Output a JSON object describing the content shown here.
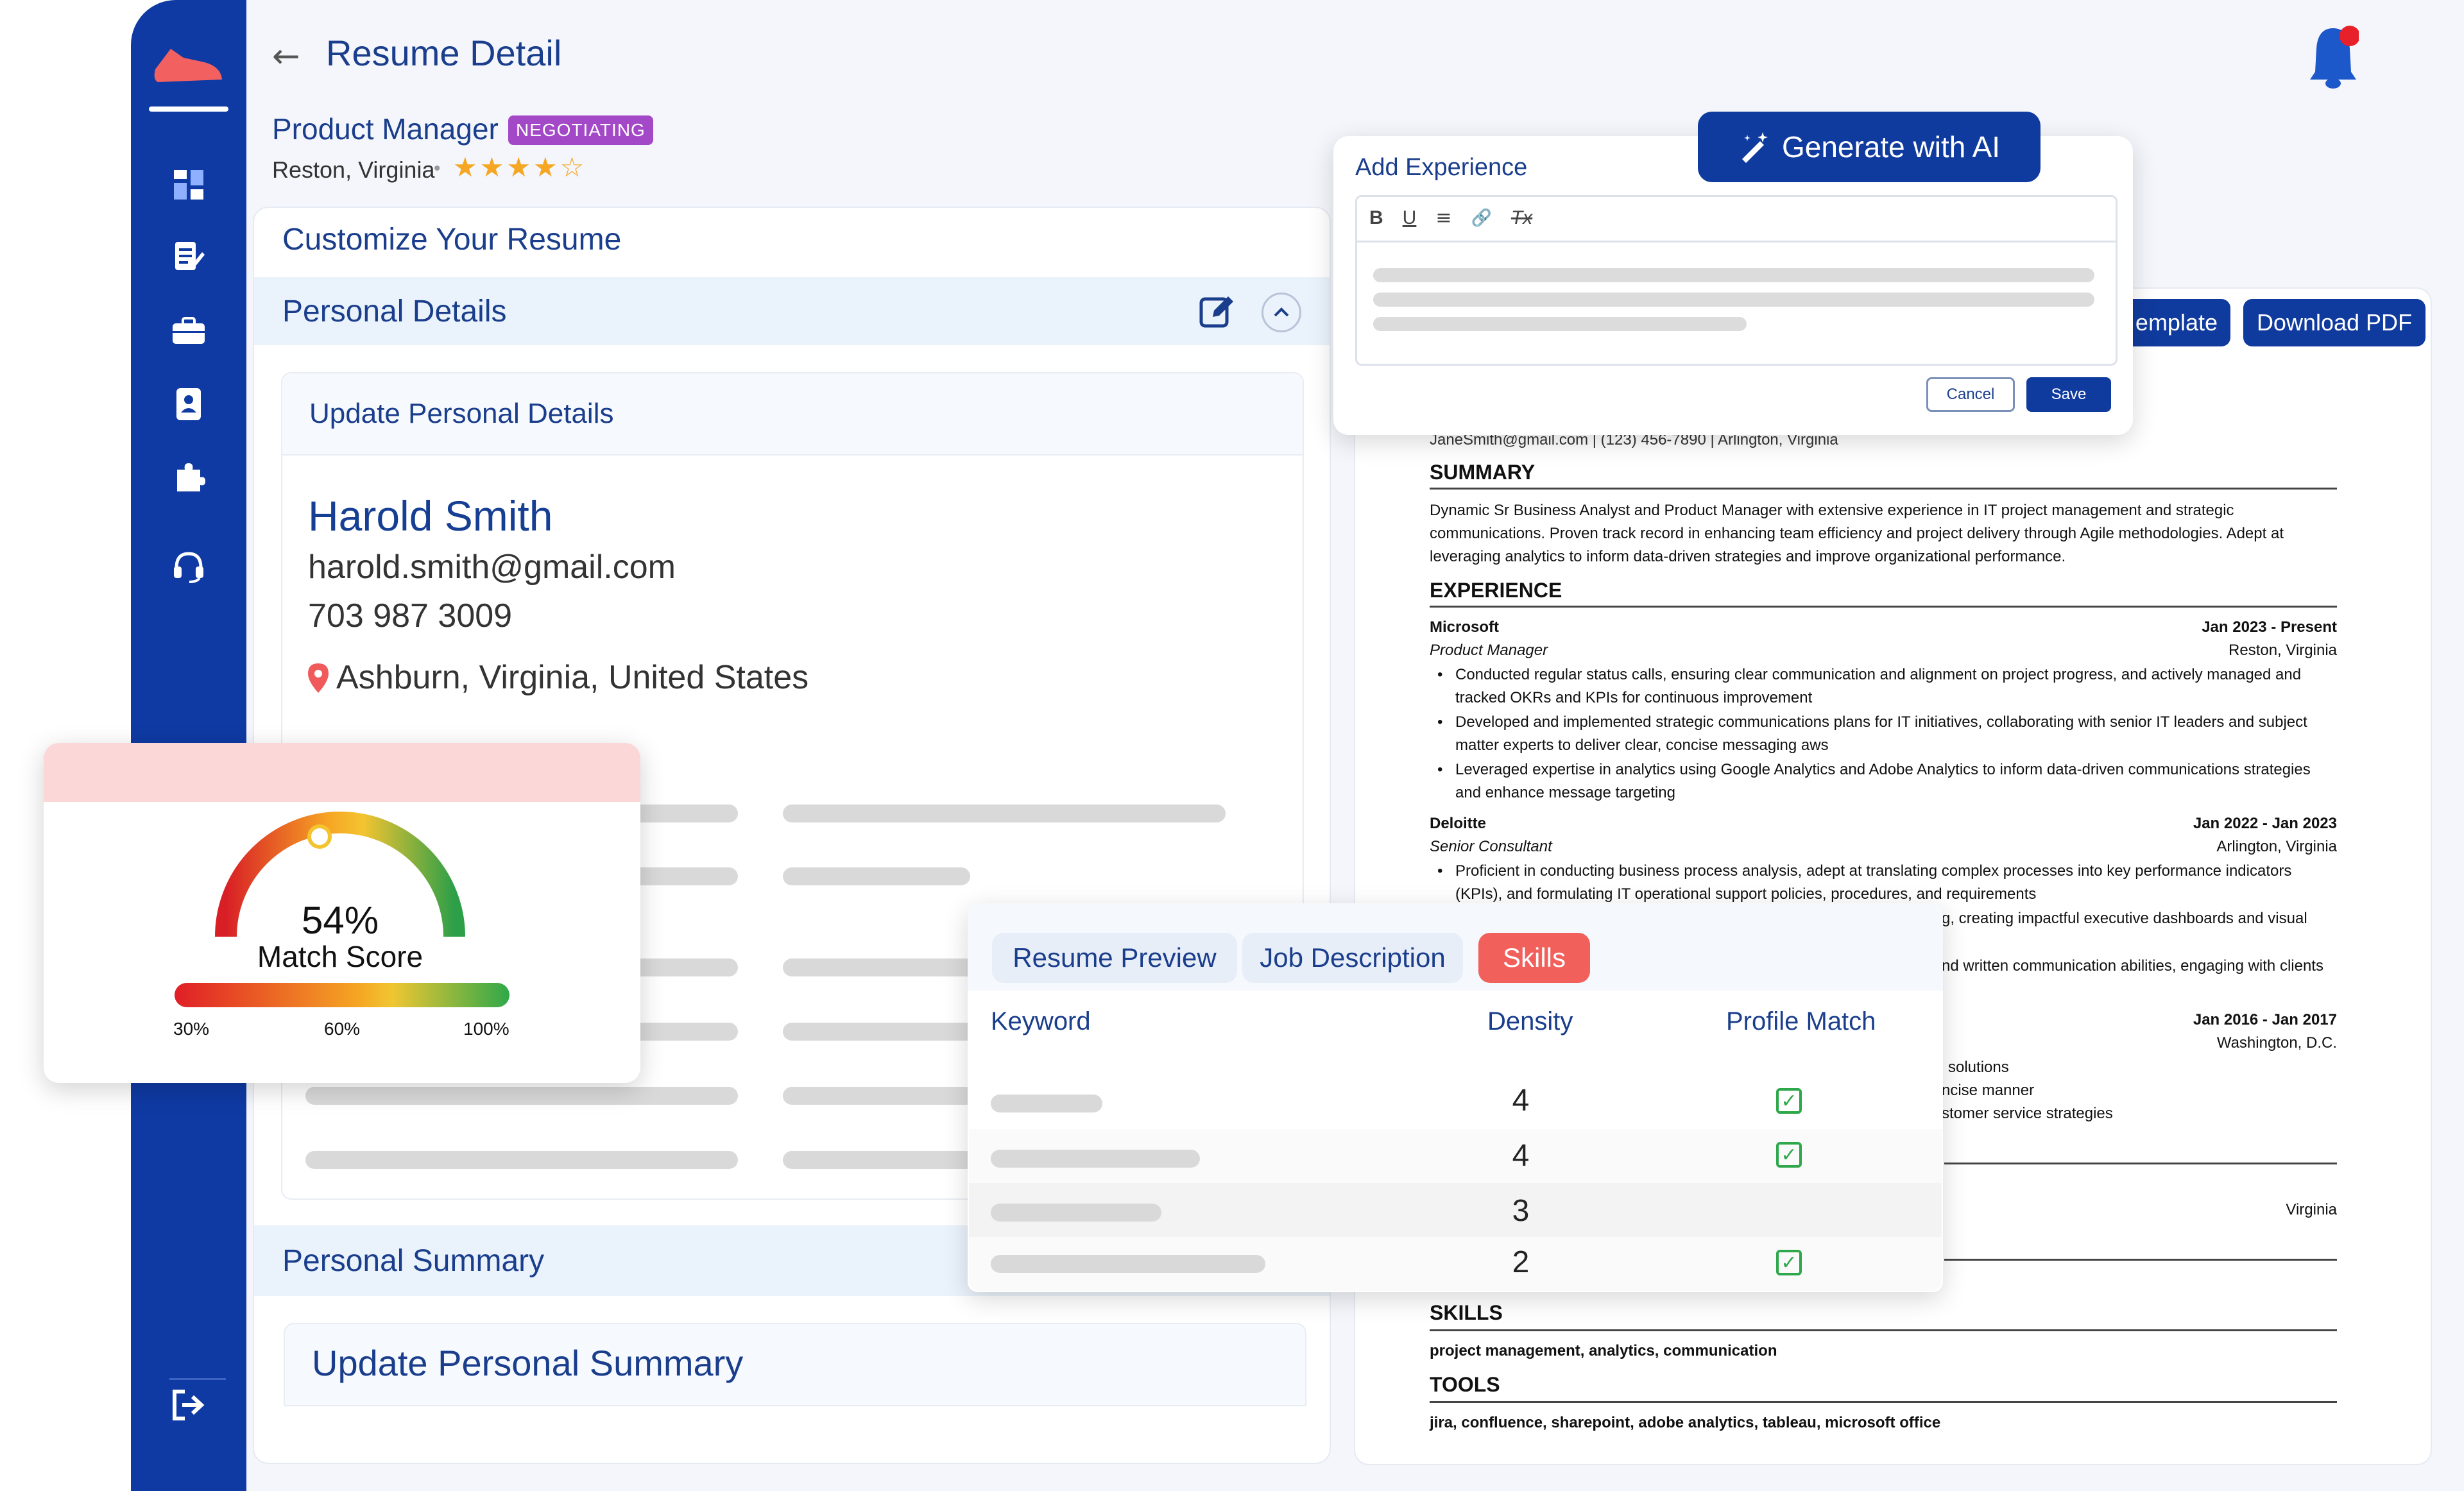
{
  "header": {
    "back_icon": "arrow-left-icon",
    "title": "Resume Detail",
    "notification_icon": "bell-icon"
  },
  "sidebar": {
    "items": [
      {
        "icon": "logo-shoe-icon"
      },
      {
        "icon": "dashboard-icon"
      },
      {
        "icon": "resume-edit-icon"
      },
      {
        "icon": "briefcase-icon"
      },
      {
        "icon": "contacts-icon"
      },
      {
        "icon": "puzzle-icon"
      },
      {
        "icon": "headset-icon"
      },
      {
        "icon": "logout-icon"
      }
    ]
  },
  "job": {
    "title": "Product Manager",
    "status": "NEGOTIATING",
    "location": "Reston, Virginia",
    "rating": 4,
    "rating_max": 5
  },
  "customize": {
    "heading": "Customize Your Resume",
    "personal_details": "Personal Details",
    "update_personal_details": "Update Personal Details",
    "name": "Harold Smith",
    "email": "harold.smith@gmail.com",
    "phone": "703 987 3009",
    "address": "Ashburn, Virginia, United States",
    "personal_summary": "Personal Summary",
    "update_personal_summary": "Update Personal Summary"
  },
  "match": {
    "value": "54%",
    "value_num": 54,
    "label": "Match Score",
    "scale": [
      "30%",
      "60%",
      "100%"
    ]
  },
  "add_experience": {
    "title": "Add Experience",
    "ai_button": "Generate with AI",
    "toolbar": [
      "B",
      "U",
      "≡",
      "🔗",
      "Tx"
    ],
    "cancel": "Cancel",
    "save": "Save"
  },
  "resume_actions": {
    "template": "emplate",
    "download": "Download PDF"
  },
  "resume": {
    "contact": "JaneSmith@gmail.com | (123) 456-7890 | Arlington, Virginia",
    "summary_h": "SUMMARY",
    "summary": [
      "Dynamic Sr Business Analyst and Product Manager with extensive experience in IT project management and strategic",
      "communications. Proven track record in enhancing team efficiency and project delivery through Agile methodologies. Adept at",
      "leveraging analytics to inform data-driven strategies and improve organizational performance."
    ],
    "experience_h": "EXPERIENCE",
    "jobs": [
      {
        "company": "Microsoft",
        "dates": "Jan 2023 - Present",
        "role": "Product Manager",
        "location": "Reston, Virginia",
        "bullets": [
          [
            "Conducted regular status calls, ensuring clear communication and alignment on project progress, and actively managed and",
            "tracked OKRs and KPIs for continuous improvement"
          ],
          [
            "Developed and implemented strategic communications plans for IT initiatives, collaborating with senior IT leaders and subject",
            "matter experts to deliver clear, concise messaging aws"
          ],
          [
            "Leveraged expertise in analytics using Google Analytics and Adobe Analytics to inform data-driven communications strategies",
            "and enhance message targeting"
          ]
        ]
      },
      {
        "company": "Deloitte",
        "dates": "Jan 2022 - Jan 2023",
        "role": "Senior Consultant",
        "location": "Arlington, Virginia",
        "bullets": [
          [
            "Proficient in conducting business process analysis, adept at translating complex processes into key performance indicators",
            "(KPIs), and formulating IT operational support policies, procedures, and requirements"
          ]
        ]
      }
    ],
    "frag1": "g, creating impactful executive dashboards and visual",
    "frag2": "nd written communication abilities, engaging with clients",
    "job3_dates": "Jan 2016 - Jan 2017",
    "job3_location": "Washington, D.C.",
    "frag3": "solutions",
    "frag4": "ncise manner",
    "frag5": "stomer service strategies",
    "frag6": "Virginia",
    "skills_h": "SKILLS",
    "skills": "project management, analytics, communication",
    "tools_h": "TOOLS",
    "tools": "jira, confluence, sharepoint, adobe analytics, tableau, microsoft office"
  },
  "keyword_panel": {
    "tabs": [
      "Resume Preview",
      "Job Description",
      "Skills"
    ],
    "active_tab": 2,
    "columns": [
      "Keyword",
      "Density",
      "Profile Match"
    ],
    "rows": [
      {
        "density": "4",
        "match": true
      },
      {
        "density": "4",
        "match": true
      },
      {
        "density": "3",
        "match": false
      },
      {
        "density": "2",
        "match": true
      }
    ]
  },
  "colors": {
    "sidebar": "#0f3aa3",
    "primary": "#163f94",
    "badge": "#a349c8",
    "skills_tab": "#f2605c",
    "star": "#f5a623",
    "check": "#2ea84a"
  }
}
